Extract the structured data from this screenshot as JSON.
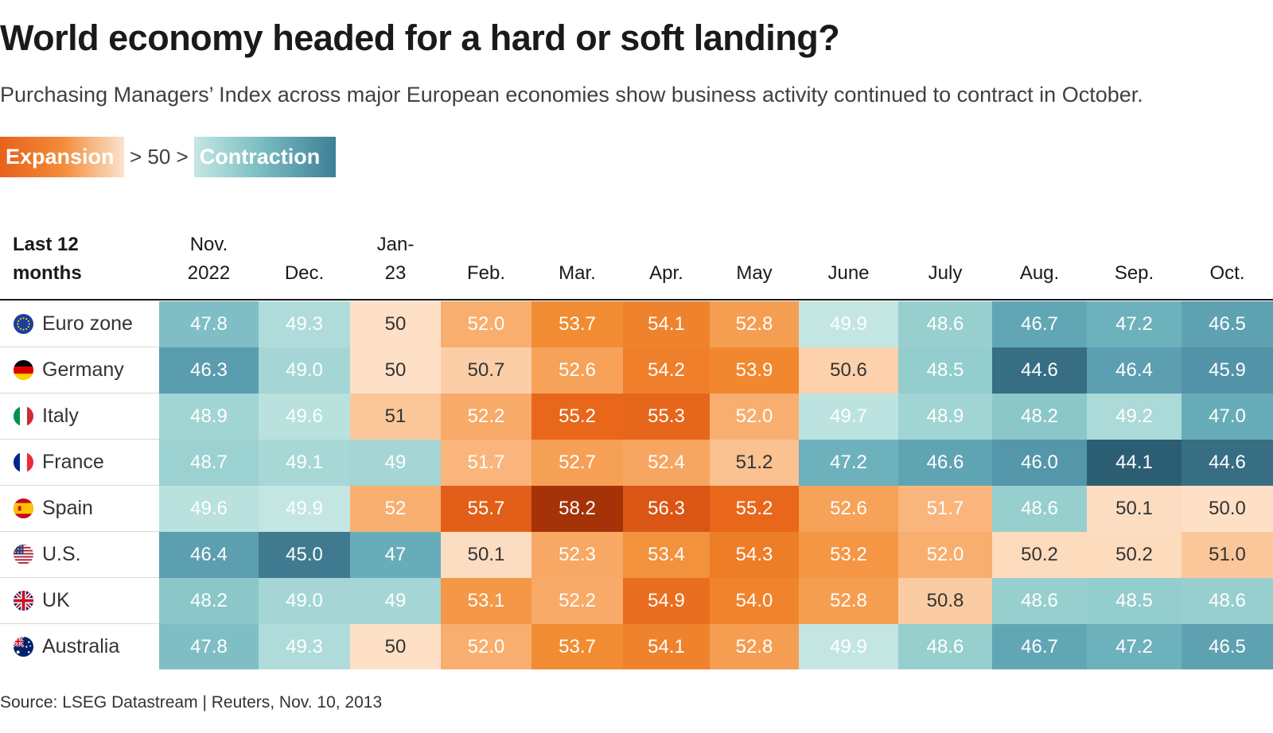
{
  "title": "World economy headed for a hard or soft landing?",
  "subtitle": "Purchasing Managers’ Index across major European economies show business activity continued to contract in October.",
  "legend": {
    "expansion": "Expansion",
    "middle": "> 50 >",
    "contraction": "Contraction"
  },
  "source": "Source: LSEG Datastream | Reuters, Nov. 10, 2013",
  "colors": {
    "expansion_light": "#fde0c8",
    "expansion_dark": "#a63208",
    "contraction_light": "#c8e8e5",
    "contraction_dark": "#2c5e73"
  },
  "chart_data": {
    "type": "heatmap",
    "title": "World economy headed for a hard or soft landing?",
    "threshold": 50,
    "row_header": [
      "Last 12",
      "months"
    ],
    "columns": [
      [
        "Nov.",
        "2022"
      ],
      [
        "",
        "Dec."
      ],
      [
        "Jan-",
        "23"
      ],
      [
        "",
        "Feb."
      ],
      [
        "",
        "Mar."
      ],
      [
        "",
        "Apr."
      ],
      [
        "",
        "May"
      ],
      [
        "",
        "June"
      ],
      [
        "",
        "July"
      ],
      [
        "",
        "Aug."
      ],
      [
        "",
        "Sep."
      ],
      [
        "",
        "Oct."
      ]
    ],
    "rows": [
      {
        "name": "Euro zone",
        "flag": "eu-flag-icon",
        "values": [
          "47.8",
          "49.3",
          "50",
          "52.0",
          "53.7",
          "54.1",
          "52.8",
          "49.9",
          "48.6",
          "46.7",
          "47.2",
          "46.5"
        ]
      },
      {
        "name": "Germany",
        "flag": "germany-flag-icon",
        "values": [
          "46.3",
          "49.0",
          "50",
          "50.7",
          "52.6",
          "54.2",
          "53.9",
          "50.6",
          "48.5",
          "44.6",
          "46.4",
          "45.9"
        ]
      },
      {
        "name": "Italy",
        "flag": "italy-flag-icon",
        "values": [
          "48.9",
          "49.6",
          "51",
          "52.2",
          "55.2",
          "55.3",
          "52.0",
          "49.7",
          "48.9",
          "48.2",
          "49.2",
          "47.0"
        ]
      },
      {
        "name": "France",
        "flag": "france-flag-icon",
        "values": [
          "48.7",
          "49.1",
          "49",
          "51.7",
          "52.7",
          "52.4",
          "51.2",
          "47.2",
          "46.6",
          "46.0",
          "44.1",
          "44.6"
        ]
      },
      {
        "name": "Spain",
        "flag": "spain-flag-icon",
        "values": [
          "49.6",
          "49.9",
          "52",
          "55.7",
          "58.2",
          "56.3",
          "55.2",
          "52.6",
          "51.7",
          "48.6",
          "50.1",
          "50.0"
        ]
      },
      {
        "name": "U.S.",
        "flag": "us-flag-icon",
        "values": [
          "46.4",
          "45.0",
          "47",
          "50.1",
          "52.3",
          "53.4",
          "54.3",
          "53.2",
          "52.0",
          "50.2",
          "50.2",
          "51.0"
        ]
      },
      {
        "name": "UK",
        "flag": "uk-flag-icon",
        "values": [
          "48.2",
          "49.0",
          "49",
          "53.1",
          "52.2",
          "54.9",
          "54.0",
          "52.8",
          "50.8",
          "48.6",
          "48.5",
          "48.6"
        ]
      },
      {
        "name": "Australia",
        "flag": "australia-flag-icon",
        "values": [
          "47.8",
          "49.3",
          "50",
          "52.0",
          "53.7",
          "54.1",
          "52.8",
          "49.9",
          "48.6",
          "46.7",
          "47.2",
          "46.5"
        ]
      }
    ]
  }
}
